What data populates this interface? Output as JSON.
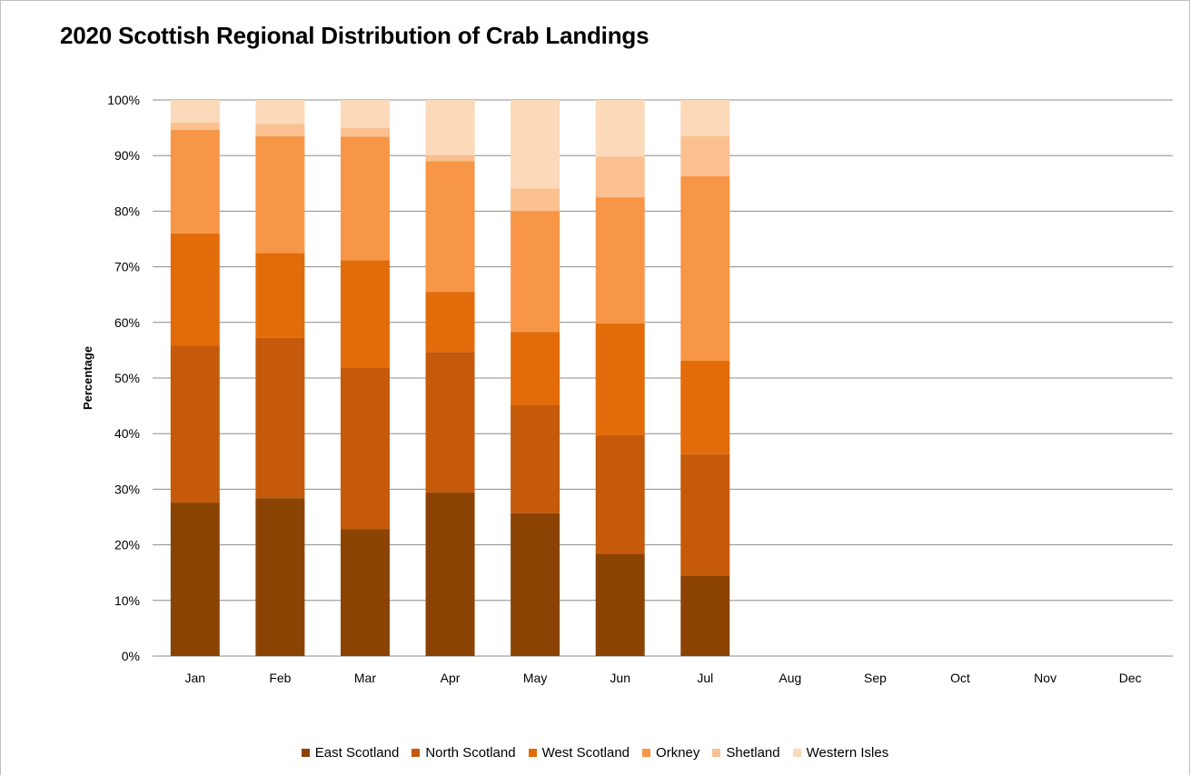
{
  "chart_data": {
    "type": "bar",
    "stacked": true,
    "title": "2020 Scottish Regional Distribution of Crab Landings",
    "ylabel": "Percentage",
    "xlabel": "",
    "ylim": [
      0,
      100
    ],
    "yticks": [
      "0%",
      "10%",
      "20%",
      "30%",
      "40%",
      "50%",
      "60%",
      "70%",
      "80%",
      "90%",
      "100%"
    ],
    "grid": true,
    "legend_position": "bottom",
    "categories": [
      "Jan",
      "Feb",
      "Mar",
      "Apr",
      "May",
      "Jun",
      "Jul",
      "Aug",
      "Sep",
      "Oct",
      "Nov",
      "Dec"
    ],
    "series": [
      {
        "name": "East Scotland",
        "color": "#8b4304",
        "values": [
          27.6,
          28.4,
          22.8,
          29.4,
          25.7,
          18.4,
          14.5,
          null,
          null,
          null,
          null,
          null
        ]
      },
      {
        "name": "North Scotland",
        "color": "#c55a0b",
        "values": [
          28.2,
          28.8,
          29.0,
          25.3,
          19.4,
          21.3,
          21.8,
          null,
          null,
          null,
          null,
          null
        ]
      },
      {
        "name": "West Scotland",
        "color": "#e36c0a",
        "values": [
          20.2,
          15.3,
          19.4,
          10.8,
          13.2,
          20.1,
          16.8,
          null,
          null,
          null,
          null,
          null
        ]
      },
      {
        "name": "Orkney",
        "color": "#f79646",
        "values": [
          18.6,
          21.0,
          22.2,
          23.5,
          21.7,
          22.7,
          33.2,
          null,
          null,
          null,
          null,
          null
        ]
      },
      {
        "name": "Shetland",
        "color": "#fac090",
        "values": [
          1.3,
          2.2,
          1.6,
          1.0,
          4.1,
          7.3,
          7.2,
          null,
          null,
          null,
          null,
          null
        ]
      },
      {
        "name": "Western Isles",
        "color": "#fcd9b8",
        "values": [
          4.1,
          4.3,
          5.0,
          10.0,
          15.9,
          10.2,
          6.5,
          null,
          null,
          null,
          null,
          null
        ]
      }
    ]
  }
}
